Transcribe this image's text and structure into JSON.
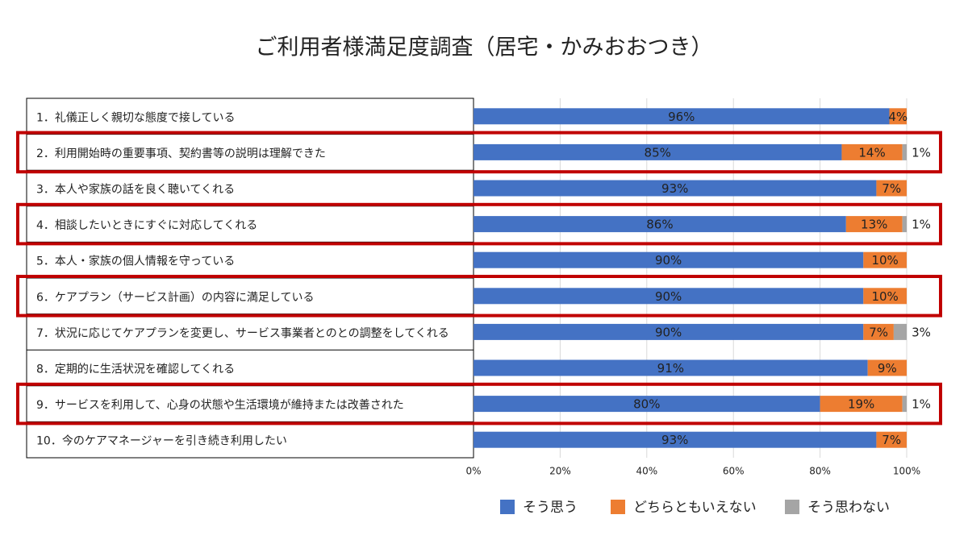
{
  "chart_data": {
    "type": "stacked_bar_horizontal",
    "title": "ご利用者様満足度調査（居宅・かみおおつき）",
    "categories": [
      "1．礼儀正しく親切な態度で接している",
      "2．利用開始時の重要事項、契約書等の説明は理解できた",
      "3．本人や家族の話を良く聴いてくれる",
      "4．相談したいときにすぐに対応してくれる",
      "5．本人・家族の個人情報を守っている",
      "6．ケアプラン（サービス計画）の内容に満足している",
      "7．状況に応じてケアプランを変更し、サービス事業者とのとの調整をしてくれる",
      "8．定期的に生活状況を確認してくれる",
      "9．サービスを利用して、心身の状態や生活環境が維持または改善された",
      "10．今のケアマネージャーを引き続き利用したい"
    ],
    "series": [
      {
        "name": "そう思う",
        "color": "#4472c4",
        "values": [
          96,
          85,
          93,
          86,
          90,
          90,
          90,
          91,
          80,
          93
        ],
        "value_labels": [
          "96%",
          "85%",
          "93%",
          "86%",
          "90%",
          "90%",
          "90%",
          "91%",
          "80%",
          "93%"
        ]
      },
      {
        "name": "どちらともいえない",
        "color": "#ed7d31",
        "values": [
          4,
          14,
          7,
          13,
          10,
          10,
          7,
          9,
          19,
          7
        ],
        "value_labels": [
          "4%",
          "14%",
          "7%",
          "13%",
          "10%",
          "10%",
          "7%",
          "9%",
          "19%",
          "7%"
        ]
      },
      {
        "name": "そう思わない",
        "color": "#a5a5a5",
        "values": [
          null,
          1,
          null,
          1,
          null,
          null,
          3,
          null,
          1,
          null
        ],
        "value_labels": [
          null,
          "1%",
          null,
          "1%",
          null,
          null,
          "3%",
          null,
          "1%",
          null
        ]
      }
    ],
    "xlim": [
      0,
      100
    ],
    "xticks": [
      {
        "value": 0,
        "label": "0%"
      },
      {
        "value": 20,
        "label": "20%"
      },
      {
        "value": 40,
        "label": "40%"
      },
      {
        "value": 60,
        "label": "60%"
      },
      {
        "value": 80,
        "label": "80%"
      },
      {
        "value": 100,
        "label": "100%"
      }
    ],
    "grid": true,
    "highlighted_categories": [
      1,
      3,
      5,
      8
    ],
    "highlight_color": "#c00000"
  }
}
